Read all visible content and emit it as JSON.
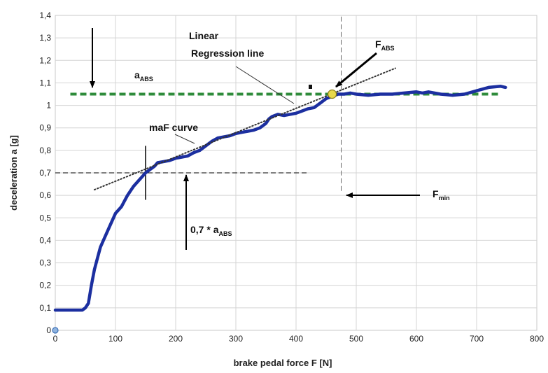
{
  "chart_data": {
    "type": "line",
    "title": "",
    "xlabel": "brake pedal force F [N]",
    "ylabel": "deceleration a [g]",
    "xlim": [
      0,
      800
    ],
    "ylim": [
      0,
      1.4
    ],
    "x_ticks": [
      "0",
      "100",
      "200",
      "300",
      "400",
      "500",
      "600",
      "700",
      "800"
    ],
    "y_ticks": [
      "0",
      "0,1",
      "0,2",
      "0,3",
      "0,4",
      "0,5",
      "0,6",
      "0,7",
      "0,8",
      "0,9",
      "1",
      "1,1",
      "1,2",
      "1,3",
      "1,4"
    ],
    "grid": true,
    "legend": "none",
    "series": [
      {
        "type": "line",
        "color": "#1c2fa0",
        "x": [
          0,
          10,
          20,
          30,
          40,
          45,
          50,
          55,
          60,
          65,
          70,
          75,
          80,
          90,
          100,
          110,
          120,
          130,
          140,
          150,
          160,
          165,
          170,
          180,
          190,
          200,
          210,
          220,
          230,
          240,
          250,
          260,
          270,
          280,
          290,
          300,
          310,
          320,
          330,
          340,
          350,
          355,
          360,
          370,
          380,
          390,
          400,
          410,
          420,
          430,
          440,
          450,
          460,
          470,
          480,
          490,
          500,
          520,
          540,
          560,
          580,
          600,
          610,
          620,
          640,
          660,
          680,
          700,
          720,
          740,
          748
        ],
        "y": [
          0.09,
          0.09,
          0.09,
          0.09,
          0.09,
          0.09,
          0.1,
          0.12,
          0.2,
          0.27,
          0.32,
          0.37,
          0.4,
          0.46,
          0.52,
          0.55,
          0.6,
          0.64,
          0.67,
          0.7,
          0.72,
          0.73,
          0.745,
          0.75,
          0.755,
          0.765,
          0.77,
          0.775,
          0.79,
          0.8,
          0.82,
          0.84,
          0.855,
          0.86,
          0.865,
          0.875,
          0.88,
          0.885,
          0.89,
          0.9,
          0.92,
          0.94,
          0.95,
          0.96,
          0.955,
          0.96,
          0.965,
          0.975,
          0.985,
          0.99,
          1.01,
          1.03,
          1.04,
          1.05,
          1.05,
          1.055,
          1.05,
          1.045,
          1.05,
          1.05,
          1.055,
          1.06,
          1.055,
          1.06,
          1.05,
          1.045,
          1.05,
          1.065,
          1.08,
          1.085,
          1.08
        ]
      },
      {
        "type": "line",
        "style": "dotted",
        "color": "#333333",
        "x": [
          65,
          565
        ],
        "y": [
          0.625,
          1.165
        ]
      }
    ],
    "reference_lines": [
      {
        "orientation": "horizontal",
        "y": 1.05,
        "x": [
          25,
          740
        ],
        "color": "#2e8b3a",
        "style": "dashed"
      },
      {
        "orientation": "horizontal",
        "y": 0.7,
        "x": [
          0,
          420
        ],
        "color": "#000000",
        "style": "dashed"
      },
      {
        "orientation": "vertical",
        "x": 475,
        "y": [
          0.62,
          1.4
        ],
        "color": "#666666",
        "style": "dashed"
      },
      {
        "orientation": "vertical",
        "x": 150,
        "y": [
          0.58,
          0.82
        ],
        "color": "#000000",
        "style": "solid"
      }
    ],
    "markers": [
      {
        "x": 460,
        "y": 1.05,
        "color": "#e8d84a",
        "label": "F_ABS"
      },
      {
        "x": 0,
        "y": 0.0,
        "color": "#8fb4e0"
      }
    ],
    "annotations": {
      "regression_label_1": "Linear",
      "regression_label_2": "Regression line",
      "fabs_main": "F",
      "fabs_sub": "ABS",
      "aabs_main": "a",
      "aabs_sub": "ABS",
      "maf_curve": "maF curve",
      "fmin_main": "F",
      "fmin_sub": "min",
      "seven_main": "0,7 * a",
      "seven_sub": "ABS"
    }
  }
}
